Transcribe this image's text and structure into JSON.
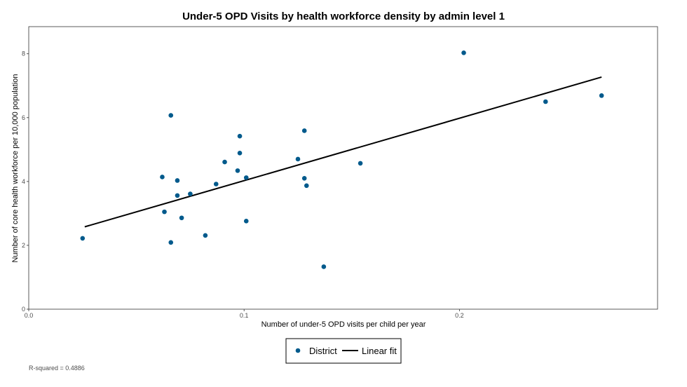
{
  "chart_data": {
    "type": "scatter",
    "title": "Under-5 OPD Visits by health workforce density by admin level 1",
    "xlabel": "Number of under-5 OPD visits per child per year",
    "ylabel": "Number of core health workforce per 10,000 population",
    "xlim": [
      0,
      0.292
    ],
    "ylim": [
      0,
      8.85
    ],
    "x_ticks": [
      0,
      0.1,
      0.2
    ],
    "x_tick_labels": [
      "0.0",
      "0.1",
      "0.2"
    ],
    "y_ticks": [
      0,
      2,
      4,
      6,
      8
    ],
    "y_tick_labels": [
      "0",
      "2",
      "4",
      "6",
      "8"
    ],
    "grid": false,
    "legend_position": "bottom",
    "colors": {
      "points": "#005a8c",
      "fit_line": "#000000"
    },
    "series": [
      {
        "name": "District",
        "kind": "points",
        "points": [
          {
            "x": 0.025,
            "y": 2.22
          },
          {
            "x": 0.062,
            "y": 4.14
          },
          {
            "x": 0.063,
            "y": 3.05
          },
          {
            "x": 0.066,
            "y": 2.09
          },
          {
            "x": 0.066,
            "y": 6.07
          },
          {
            "x": 0.069,
            "y": 4.03
          },
          {
            "x": 0.069,
            "y": 3.56
          },
          {
            "x": 0.071,
            "y": 2.86
          },
          {
            "x": 0.075,
            "y": 3.61
          },
          {
            "x": 0.082,
            "y": 2.31
          },
          {
            "x": 0.087,
            "y": 3.92
          },
          {
            "x": 0.091,
            "y": 4.61
          },
          {
            "x": 0.097,
            "y": 4.34
          },
          {
            "x": 0.098,
            "y": 5.42
          },
          {
            "x": 0.098,
            "y": 4.89
          },
          {
            "x": 0.101,
            "y": 4.12
          },
          {
            "x": 0.101,
            "y": 2.76
          },
          {
            "x": 0.125,
            "y": 4.7
          },
          {
            "x": 0.128,
            "y": 5.59
          },
          {
            "x": 0.128,
            "y": 4.1
          },
          {
            "x": 0.129,
            "y": 3.87
          },
          {
            "x": 0.137,
            "y": 1.33
          },
          {
            "x": 0.154,
            "y": 4.57
          },
          {
            "x": 0.202,
            "y": 8.03
          },
          {
            "x": 0.24,
            "y": 6.5
          },
          {
            "x": 0.266,
            "y": 6.69
          }
        ]
      },
      {
        "name": "Linear fit",
        "kind": "line",
        "points": [
          {
            "x": 0.026,
            "y": 2.58
          },
          {
            "x": 0.266,
            "y": 7.27
          }
        ]
      }
    ],
    "annotation": "R-squared = 0.4886"
  }
}
